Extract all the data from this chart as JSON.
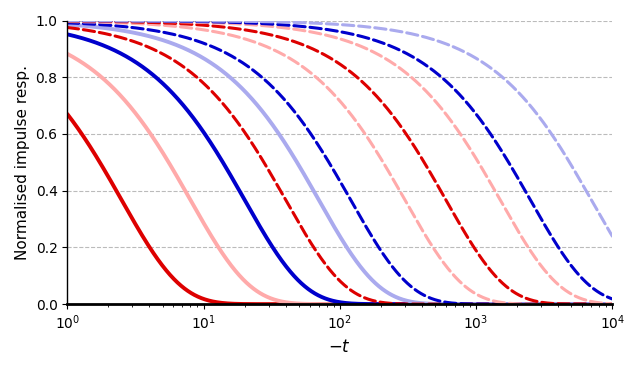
{
  "t_min": 1,
  "t_max": 10000,
  "n_points": 2000,
  "curves": [
    {
      "tau": 2.5,
      "color": "#dd0000",
      "linestyle": "solid",
      "linewidth": 2.8
    },
    {
      "tau": 8.0,
      "color": "#ffaaaa",
      "linestyle": "solid",
      "linewidth": 2.8
    },
    {
      "tau": 20.0,
      "color": "#0000cc",
      "linestyle": "solid",
      "linewidth": 2.8
    },
    {
      "tau": 70.0,
      "color": "#aaaaee",
      "linestyle": "solid",
      "linewidth": 2.8
    },
    {
      "tau": 40.0,
      "color": "#dd0000",
      "linestyle": "dashed",
      "linewidth": 2.2
    },
    {
      "tau": 120.0,
      "color": "#0000cc",
      "linestyle": "dashed",
      "linewidth": 2.2
    },
    {
      "tau": 300.0,
      "color": "#ffaaaa",
      "linestyle": "dashed",
      "linewidth": 2.2
    },
    {
      "tau": 600.0,
      "color": "#dd0000",
      "linestyle": "dashed",
      "linewidth": 2.2
    },
    {
      "tau": 1500.0,
      "color": "#ffaaaa",
      "linestyle": "dashed",
      "linewidth": 2.2
    },
    {
      "tau": 2500.0,
      "color": "#0000cc",
      "linestyle": "dashed",
      "linewidth": 2.2
    },
    {
      "tau": 7000.0,
      "color": "#aaaaee",
      "linestyle": "dashed",
      "linewidth": 2.2
    }
  ],
  "xlabel": "$-t$",
  "ylabel": "Normalised impulse resp.",
  "xlim": [
    1,
    10000
  ],
  "ylim": [
    0,
    1.0
  ],
  "yticks": [
    0.0,
    0.2,
    0.4,
    0.6,
    0.8,
    1.0
  ],
  "background_color": "#ffffff"
}
